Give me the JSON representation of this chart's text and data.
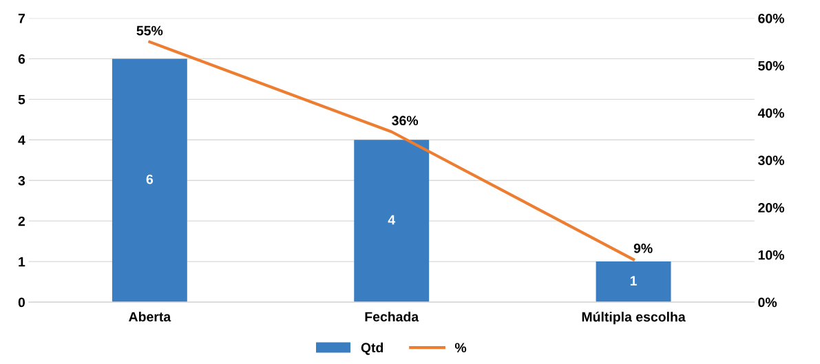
{
  "chart_data": {
    "type": "bar",
    "categories": [
      "Aberta",
      "Fechada",
      "Múltipla escolha"
    ],
    "series": [
      {
        "name": "Qtd",
        "color": "#3a7dc1",
        "values": [
          6,
          4,
          1
        ],
        "value_labels": [
          "6",
          "4",
          "1"
        ]
      },
      {
        "name": "%",
        "type": "line",
        "axis": "y2",
        "color": "#ed7d31",
        "values": [
          55,
          36,
          9
        ],
        "value_labels": [
          "55%",
          "36%",
          "9%"
        ]
      }
    ],
    "ylim": [
      0,
      7
    ],
    "yticks": [
      0,
      1,
      2,
      3,
      4,
      5,
      6,
      7
    ],
    "y2lim": [
      0,
      60
    ],
    "y2ticks": [
      {
        "value": 0,
        "label": "0%"
      },
      {
        "value": 10,
        "label": "10%"
      },
      {
        "value": 20,
        "label": "20%"
      },
      {
        "value": 30,
        "label": "30%"
      },
      {
        "value": 40,
        "label": "40%"
      },
      {
        "value": 50,
        "label": "50%"
      },
      {
        "value": 60,
        "label": "60%"
      }
    ],
    "grid": "y",
    "legend": "bottom",
    "marker": "none",
    "line_style": "solid"
  }
}
